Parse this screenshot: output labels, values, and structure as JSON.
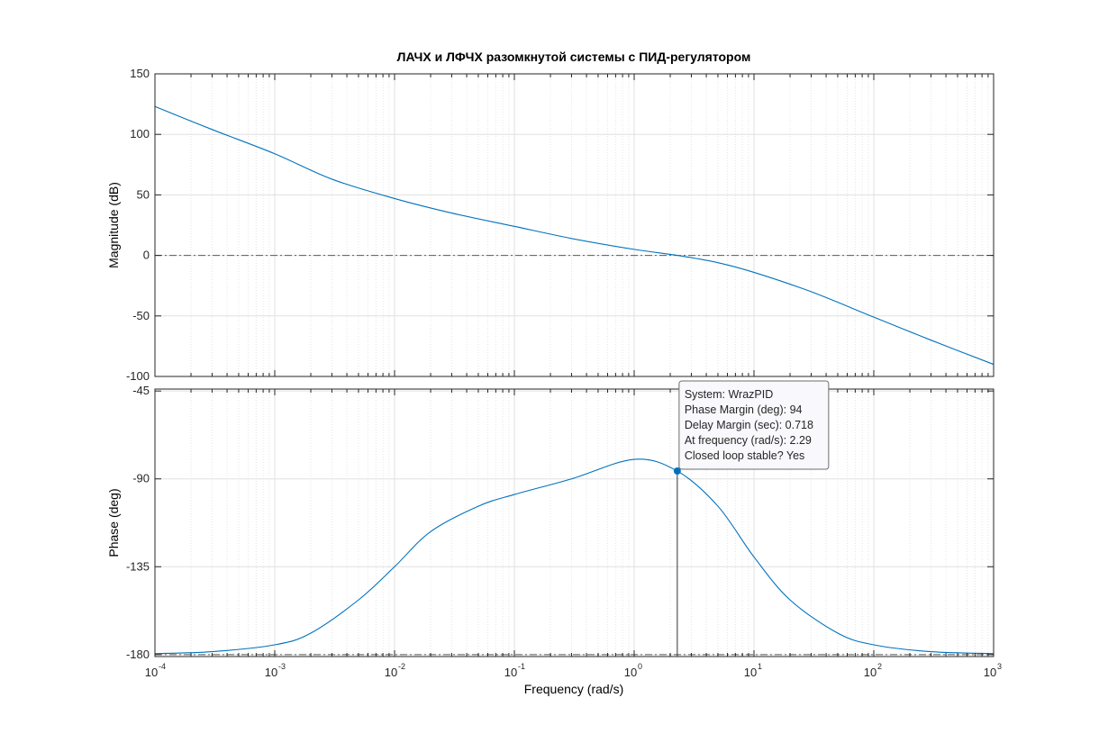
{
  "title": "ЛАЧХ и ЛФЧХ разомкнутой системы с ПИД-регулятором",
  "xlabel": "Frequency  (rad/s)",
  "x_tick_labels": [
    {
      "base": "10",
      "exp": "-4"
    },
    {
      "base": "10",
      "exp": "-3"
    },
    {
      "base": "10",
      "exp": "-2"
    },
    {
      "base": "10",
      "exp": "-1"
    },
    {
      "base": "10",
      "exp": "0"
    },
    {
      "base": "10",
      "exp": "1"
    },
    {
      "base": "10",
      "exp": "2"
    },
    {
      "base": "10",
      "exp": "3"
    }
  ],
  "colors": {
    "line": "#0072BD",
    "grid": "#e0e0e0",
    "axis": "#262626",
    "refline": "#5a5a5a",
    "datatip_bg": "#f8f8fd"
  },
  "datatip": {
    "lines": [
      "System: WrazPID",
      "Phase Margin (deg): 94",
      "Delay Margin (sec): 0.718",
      "At frequency (rad/s): 2.29",
      "Closed loop stable? Yes"
    ]
  },
  "chart_data": [
    {
      "type": "line",
      "name": "magnitude",
      "ylabel": "Magnitude (dB)",
      "xscale": "log",
      "xlim": [
        0.0001,
        1000
      ],
      "ylim": [
        -100,
        150
      ],
      "yticks": [
        150,
        100,
        50,
        0,
        -50,
        -100
      ],
      "grid": true,
      "reference_line": 0,
      "x": [
        0.0001,
        0.0003,
        0.001,
        0.003,
        0.01,
        0.03,
        0.1,
        0.3,
        1,
        2.29,
        5,
        10,
        30,
        100,
        300,
        1000
      ],
      "y": [
        123,
        104,
        84,
        63,
        47,
        35,
        24,
        14,
        5,
        0,
        -6,
        -14,
        -30,
        -51,
        -70,
        -90
      ]
    },
    {
      "type": "line",
      "name": "phase",
      "ylabel": "Phase (deg)",
      "xscale": "log",
      "xlim": [
        0.0001,
        1000
      ],
      "ylim": [
        -181,
        -44
      ],
      "yticks": [
        -45,
        -90,
        -135,
        -180
      ],
      "grid": true,
      "reference_line": -180,
      "x": [
        0.0001,
        0.0003,
        0.001,
        0.002,
        0.005,
        0.01,
        0.02,
        0.05,
        0.1,
        0.3,
        1,
        2.29,
        5,
        10,
        20,
        50,
        100,
        300,
        1000
      ],
      "y": [
        -179.5,
        -178.5,
        -175,
        -169,
        -152,
        -135,
        -117,
        -104,
        -98,
        -90,
        -80,
        -86,
        -104,
        -130,
        -152,
        -169,
        -175,
        -178.5,
        -179.5
      ],
      "marker": {
        "x": 2.29,
        "y": -86
      }
    }
  ]
}
